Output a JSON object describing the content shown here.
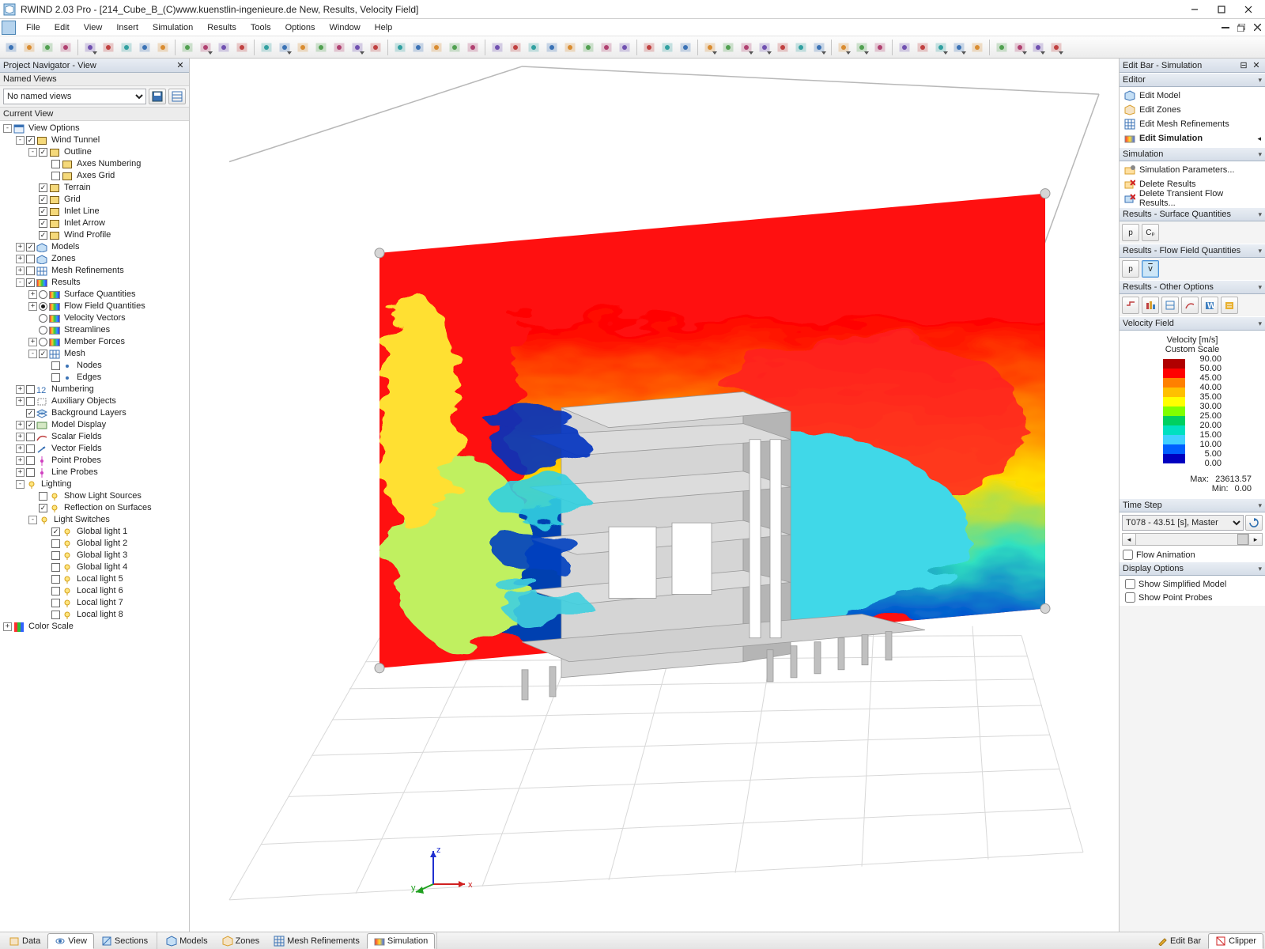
{
  "title": "RWIND 2.03 Pro - [214_Cube_B_(C)www.kuenstlin-ingenieure.de New, Results, Velocity Field]",
  "menus": [
    "File",
    "Edit",
    "View",
    "Insert",
    "Simulation",
    "Results",
    "Tools",
    "Options",
    "Window",
    "Help"
  ],
  "left": {
    "panel_title": "Project Navigator - View",
    "named_hdr": "Named Views",
    "named_sel": "No named views",
    "current_hdr": "Current View",
    "tree": [
      {
        "d": 0,
        "exp": "-",
        "cb": "none",
        "ic": "views",
        "lbl": "View Options"
      },
      {
        "d": 1,
        "exp": "-",
        "cb": "c",
        "ic": "box",
        "lbl": "Wind Tunnel"
      },
      {
        "d": 2,
        "exp": "-",
        "cb": "c",
        "ic": "box",
        "lbl": "Outline"
      },
      {
        "d": 3,
        "exp": " ",
        "cb": "u",
        "ic": "box",
        "lbl": "Axes Numbering"
      },
      {
        "d": 3,
        "exp": " ",
        "cb": "u",
        "ic": "box",
        "lbl": "Axes Grid"
      },
      {
        "d": 2,
        "exp": " ",
        "cb": "c",
        "ic": "box",
        "lbl": "Terrain"
      },
      {
        "d": 2,
        "exp": " ",
        "cb": "c",
        "ic": "box",
        "lbl": "Grid"
      },
      {
        "d": 2,
        "exp": " ",
        "cb": "c",
        "ic": "box",
        "lbl": "Inlet Line"
      },
      {
        "d": 2,
        "exp": " ",
        "cb": "c",
        "ic": "box",
        "lbl": "Inlet Arrow"
      },
      {
        "d": 2,
        "exp": " ",
        "cb": "c",
        "ic": "box",
        "lbl": "Wind Profile"
      },
      {
        "d": 1,
        "exp": "+",
        "cb": "c",
        "ic": "model",
        "lbl": "Models"
      },
      {
        "d": 1,
        "exp": "+",
        "cb": "u",
        "ic": "model",
        "lbl": "Zones"
      },
      {
        "d": 1,
        "exp": "+",
        "cb": "u",
        "ic": "mesh",
        "lbl": "Mesh Refinements"
      },
      {
        "d": 1,
        "exp": "-",
        "cb": "c",
        "ic": "rainbow",
        "lbl": "Results"
      },
      {
        "d": 2,
        "exp": "+",
        "rb": "u",
        "ic": "rainbow",
        "lbl": "Surface Quantities"
      },
      {
        "d": 2,
        "exp": "+",
        "rb": "c",
        "ic": "rainbow",
        "lbl": "Flow Field Quantities"
      },
      {
        "d": 2,
        "exp": " ",
        "rb": "u",
        "ic": "rainbow",
        "lbl": "Velocity Vectors"
      },
      {
        "d": 2,
        "exp": " ",
        "rb": "u",
        "ic": "rainbow",
        "lbl": "Streamlines"
      },
      {
        "d": 2,
        "exp": "+",
        "rb": "u",
        "ic": "rainbow",
        "lbl": "Member Forces"
      },
      {
        "d": 2,
        "exp": "-",
        "cb": "c",
        "ic": "mesh",
        "lbl": "Mesh"
      },
      {
        "d": 3,
        "exp": " ",
        "cb": "u",
        "ic": "dot",
        "lbl": "Nodes"
      },
      {
        "d": 3,
        "exp": " ",
        "cb": "u",
        "ic": "dot",
        "lbl": "Edges"
      },
      {
        "d": 1,
        "exp": "+",
        "cb": "u",
        "ic": "num",
        "lbl": "Numbering"
      },
      {
        "d": 1,
        "exp": "+",
        "cb": "u",
        "ic": "aux",
        "lbl": "Auxiliary Objects"
      },
      {
        "d": 1,
        "exp": " ",
        "cb": "c",
        "ic": "layer",
        "lbl": "Background Layers"
      },
      {
        "d": 1,
        "exp": "+",
        "cb": "c",
        "ic": "disp",
        "lbl": "Model Display"
      },
      {
        "d": 1,
        "exp": "+",
        "cb": "u",
        "ic": "scalar",
        "lbl": "Scalar Fields"
      },
      {
        "d": 1,
        "exp": "+",
        "cb": "u",
        "ic": "vector",
        "lbl": "Vector Fields"
      },
      {
        "d": 1,
        "exp": "+",
        "cb": "u",
        "ic": "probe",
        "lbl": "Point Probes"
      },
      {
        "d": 1,
        "exp": "+",
        "cb": "u",
        "ic": "probe",
        "lbl": "Line Probes"
      },
      {
        "d": 1,
        "exp": "-",
        "cb": "none",
        "ic": "light",
        "lbl": "Lighting"
      },
      {
        "d": 2,
        "exp": " ",
        "cb": "u",
        "ic": "light",
        "lbl": "Show Light Sources"
      },
      {
        "d": 2,
        "exp": " ",
        "cb": "c",
        "ic": "light",
        "lbl": "Reflection on Surfaces"
      },
      {
        "d": 2,
        "exp": "-",
        "cb": "none",
        "ic": "light",
        "lbl": "Light Switches"
      },
      {
        "d": 3,
        "exp": " ",
        "cb": "c",
        "ic": "light",
        "lbl": "Global light 1"
      },
      {
        "d": 3,
        "exp": " ",
        "cb": "u",
        "ic": "light",
        "lbl": "Global light 2"
      },
      {
        "d": 3,
        "exp": " ",
        "cb": "u",
        "ic": "light",
        "lbl": "Global light 3"
      },
      {
        "d": 3,
        "exp": " ",
        "cb": "u",
        "ic": "light",
        "lbl": "Global light 4"
      },
      {
        "d": 3,
        "exp": " ",
        "cb": "u",
        "ic": "light",
        "lbl": "Local light 5"
      },
      {
        "d": 3,
        "exp": " ",
        "cb": "u",
        "ic": "light",
        "lbl": "Local light 6"
      },
      {
        "d": 3,
        "exp": " ",
        "cb": "u",
        "ic": "light",
        "lbl": "Local light 7"
      },
      {
        "d": 3,
        "exp": " ",
        "cb": "u",
        "ic": "light",
        "lbl": "Local light 8"
      },
      {
        "d": 0,
        "exp": "+",
        "cb": "none",
        "ic": "color",
        "lbl": "Color Scale"
      }
    ]
  },
  "right": {
    "panel_title": "Edit Bar - Simulation",
    "sections": {
      "editor_hdr": "Editor",
      "editor_items": [
        {
          "ic": "model",
          "txt": "Edit Model"
        },
        {
          "ic": "zone",
          "txt": "Edit Zones"
        },
        {
          "ic": "meshref",
          "txt": "Edit Mesh Refinements"
        },
        {
          "ic": "sim",
          "txt": "Edit Simulation",
          "bold": true,
          "arrow": true
        }
      ],
      "sim_hdr": "Simulation",
      "sim_items": [
        {
          "ic": "params",
          "txt": "Simulation Parameters..."
        },
        {
          "ic": "delres",
          "txt": "Delete Results"
        },
        {
          "ic": "deltrans",
          "txt": "Delete Transient Flow Results..."
        }
      ],
      "surf_hdr": "Results - Surface Quantities",
      "flow_hdr": "Results - Flow Field Quantities",
      "other_hdr": "Results - Other Options",
      "vel_hdr": "Velocity Field",
      "ts_hdr": "Time Step",
      "ts_sel": "T078 - 43.51 [s], Master",
      "flow_anim": "Flow Animation",
      "disp_hdr": "Display Options",
      "disp1": "Show Simplified Model",
      "disp2": "Show Point Probes"
    },
    "surf_btns": [
      "p",
      "Cₚ"
    ],
    "flow_btns": [
      "p",
      "v"
    ],
    "legend": {
      "title": "Velocity [m/s]",
      "subtitle": "Custom Scale",
      "colors": [
        "#b00000",
        "#ff0000",
        "#ff8000",
        "#ffc000",
        "#ffff00",
        "#80ff00",
        "#00d060",
        "#00e0c0",
        "#40d0ff",
        "#0060ff",
        "#0000c0"
      ],
      "values": [
        "90.00",
        "50.00",
        "45.00",
        "40.00",
        "35.00",
        "30.00",
        "25.00",
        "20.00",
        "15.00",
        "10.00",
        "5.00",
        "0.00"
      ],
      "max_lbl": "Max:",
      "max": "23613.57",
      "min_lbl": "Min:",
      "min": "0.00"
    }
  },
  "bottom": {
    "left_tabs": [
      {
        "ic": "data",
        "lbl": "Data"
      },
      {
        "ic": "view",
        "lbl": "View",
        "active": true
      },
      {
        "ic": "sect",
        "lbl": "Sections"
      }
    ],
    "mid_tabs": [
      {
        "ic": "model",
        "lbl": "Models"
      },
      {
        "ic": "zone",
        "lbl": "Zones"
      },
      {
        "ic": "meshref",
        "lbl": "Mesh Refinements"
      },
      {
        "ic": "sim",
        "lbl": "Simulation",
        "active": true
      }
    ],
    "right_tabs": [
      {
        "ic": "edit",
        "lbl": "Edit Bar"
      },
      {
        "ic": "clip",
        "lbl": "Clipper",
        "active": true
      }
    ]
  },
  "toolbar_groups": [
    4,
    5,
    4,
    7,
    5,
    8,
    3,
    7,
    3,
    5,
    4
  ]
}
